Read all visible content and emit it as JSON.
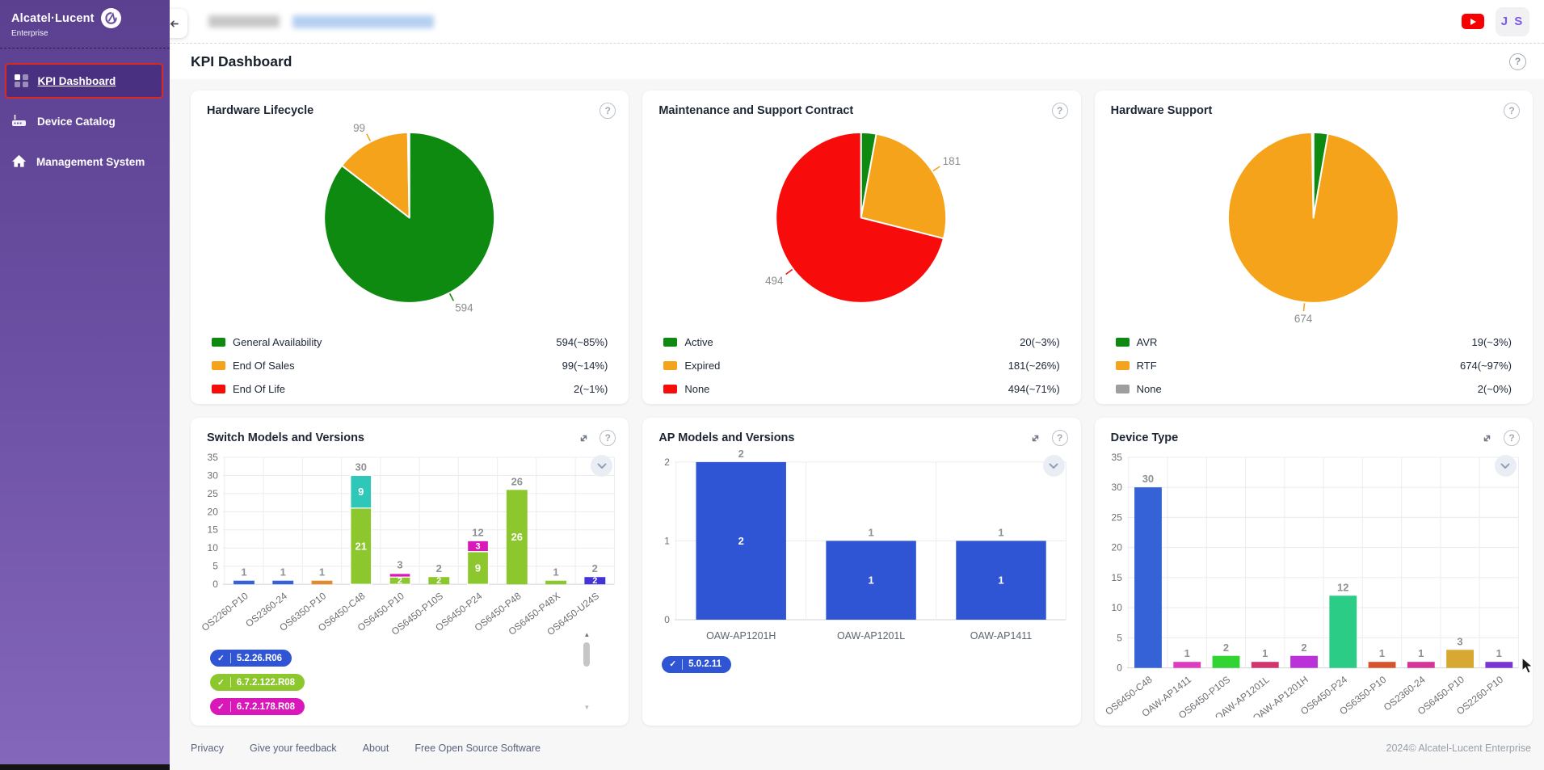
{
  "sidebar": {
    "logo": {
      "brand": "Alcatel·Lucent",
      "sub": "Enterprise"
    },
    "items": [
      {
        "label": "KPI Dashboard",
        "active": true
      },
      {
        "label": "Device Catalog",
        "active": false
      },
      {
        "label": "Management System",
        "active": false
      }
    ]
  },
  "topbar": {
    "avatar_initials": "J S"
  },
  "header": {
    "title": "KPI Dashboard"
  },
  "icons": {
    "help_glyph": "?",
    "check_glyph": "✓",
    "scroll_up_glyph": "▲",
    "scroll_down_glyph": "▼"
  },
  "footer": {
    "links": [
      "Privacy",
      "Give your feedback",
      "About",
      "Free Open Source Software"
    ],
    "copyright": "2024© Alcatel-Lucent Enterprise"
  },
  "chart_data": [
    {
      "type": "pie",
      "title": "Hardware Lifecycle",
      "slices": [
        {
          "label": "General Availability",
          "value": 594,
          "pct": "~85%",
          "legend_value": "594(~85%)",
          "color": "#0e8a10"
        },
        {
          "label": "End Of Sales",
          "value": 99,
          "pct": "~14%",
          "legend_value": "99(~14%)",
          "color": "#f5a31b"
        },
        {
          "label": "End Of Life",
          "value": 2,
          "pct": "~1%",
          "legend_value": "2(~1%)",
          "color": "#f80b0b"
        }
      ],
      "callouts": [
        {
          "text": "99",
          "angle": 333,
          "color": "#f5a31b"
        },
        {
          "text": "594",
          "angle": 152,
          "color": "#0e8a10"
        }
      ]
    },
    {
      "type": "pie",
      "title": "Maintenance and Support Contract",
      "slices": [
        {
          "label": "Active",
          "value": 20,
          "pct": "~3%",
          "legend_value": "20(~3%)",
          "color": "#0e8a10"
        },
        {
          "label": "Expired",
          "value": 181,
          "pct": "~26%",
          "legend_value": "181(~26%)",
          "color": "#f5a31b"
        },
        {
          "label": "None",
          "value": 494,
          "pct": "~71%",
          "legend_value": "494(~71%)",
          "color": "#f80b0b"
        }
      ],
      "callouts": [
        {
          "text": "181",
          "angle": 57,
          "color": "#f5a31b"
        },
        {
          "text": "494",
          "angle": 233,
          "color": "#f80b0b"
        }
      ]
    },
    {
      "type": "pie",
      "title": "Hardware Support",
      "slices": [
        {
          "label": "AVR",
          "value": 19,
          "pct": "~3%",
          "legend_value": "19(~3%)",
          "color": "#0e8a10"
        },
        {
          "label": "RTF",
          "value": 674,
          "pct": "~97%",
          "legend_value": "674(~97%)",
          "color": "#f5a31b"
        },
        {
          "label": "None",
          "value": 2,
          "pct": "~0%",
          "legend_value": "2(~0%)",
          "color": "#9e9e9e"
        }
      ],
      "callouts": [
        {
          "text": "674",
          "angle": 186,
          "color": "#f5a31b"
        }
      ]
    },
    {
      "type": "bar",
      "title": "Switch Models and Versions",
      "ymax": 35,
      "yticks": [
        0,
        5,
        10,
        15,
        20,
        25,
        30,
        35
      ],
      "categories": [
        "OS2260-P10",
        "OS2360-24",
        "OS6350-P10",
        "OS6450-C48",
        "OS6450-P10",
        "OS6450-P10S",
        "OS6450-P24",
        "OS6450-P48",
        "OS6450-P48X",
        "OS6450-U24S"
      ],
      "bars": [
        {
          "total": 1,
          "segments": [
            {
              "value": 1,
              "color": "#3562d6"
            }
          ]
        },
        {
          "total": 1,
          "segments": [
            {
              "value": 1,
              "color": "#3562d6"
            }
          ]
        },
        {
          "total": 1,
          "segments": [
            {
              "value": 1,
              "color": "#e08b2d"
            }
          ]
        },
        {
          "total": 30,
          "segments": [
            {
              "value": 21,
              "color": "#8dc72e"
            },
            {
              "value": 9,
              "color": "#2fc7b7"
            }
          ]
        },
        {
          "total": 3,
          "segments": [
            {
              "value": 2,
              "color": "#8dc72e"
            },
            {
              "value": 1,
              "color": "#d818b8"
            }
          ]
        },
        {
          "total": 2,
          "segments": [
            {
              "value": 2,
              "color": "#8dc72e"
            }
          ]
        },
        {
          "total": 12,
          "segments": [
            {
              "value": 9,
              "color": "#8dc72e"
            },
            {
              "value": 3,
              "color": "#d818b8"
            }
          ]
        },
        {
          "total": 26,
          "segments": [
            {
              "value": 26,
              "color": "#8dc72e"
            }
          ]
        },
        {
          "total": 1,
          "segments": [
            {
              "value": 1,
              "color": "#8dc72e"
            }
          ]
        },
        {
          "total": 2,
          "segments": [
            {
              "value": 2,
              "color": "#4433d6"
            }
          ]
        }
      ],
      "chips": [
        {
          "label": "5.2.26.R06",
          "color": "#2f55d4"
        },
        {
          "label": "6.7.2.122.R08",
          "color": "#8dc72e"
        },
        {
          "label": "6.7.2.178.R08",
          "color": "#d818b8"
        }
      ],
      "has_scrollbar": true
    },
    {
      "type": "bar",
      "title": "AP Models and Versions",
      "ymax": 2,
      "yticks": [
        0,
        1,
        2
      ],
      "categories": [
        "OAW-AP1201H",
        "OAW-AP1201L",
        "OAW-AP1411"
      ],
      "bars": [
        {
          "total": 2,
          "segments": [
            {
              "value": 2,
              "color": "#2f55d4"
            }
          ]
        },
        {
          "total": 1,
          "segments": [
            {
              "value": 1,
              "color": "#2f55d4"
            }
          ]
        },
        {
          "total": 1,
          "segments": [
            {
              "value": 1,
              "color": "#2f55d4"
            }
          ]
        }
      ],
      "chips": [
        {
          "label": "5.0.2.11",
          "color": "#2f55d4"
        }
      ],
      "has_scrollbar": false
    },
    {
      "type": "bar",
      "title": "Device Type",
      "ymax": 35,
      "yticks": [
        0,
        5,
        10,
        15,
        20,
        25,
        30,
        35
      ],
      "categories": [
        "OS6450-C48",
        "OAW-AP1411",
        "OS6450-P10S",
        "OAW-AP1201L",
        "OAW-AP1201H",
        "OS6450-P24",
        "OS6350-P10",
        "OS2360-24",
        "OS6450-P10",
        "OS2260-P10"
      ],
      "bars": [
        {
          "total": 30,
          "segments": [
            {
              "value": 30,
              "color": "#3562d6"
            }
          ]
        },
        {
          "total": 1,
          "segments": [
            {
              "value": 1,
              "color": "#e03bc0"
            }
          ]
        },
        {
          "total": 2,
          "segments": [
            {
              "value": 2,
              "color": "#31d433"
            }
          ]
        },
        {
          "total": 1,
          "segments": [
            {
              "value": 1,
              "color": "#d5336b"
            }
          ]
        },
        {
          "total": 2,
          "segments": [
            {
              "value": 2,
              "color": "#bb33d8"
            }
          ]
        },
        {
          "total": 12,
          "segments": [
            {
              "value": 12,
              "color": "#2bcc85"
            }
          ]
        },
        {
          "total": 1,
          "segments": [
            {
              "value": 1,
              "color": "#d8532c"
            }
          ]
        },
        {
          "total": 1,
          "segments": [
            {
              "value": 1,
              "color": "#d83399"
            }
          ]
        },
        {
          "total": 3,
          "segments": [
            {
              "value": 3,
              "color": "#d8a932"
            }
          ]
        },
        {
          "total": 1,
          "segments": [
            {
              "value": 1,
              "color": "#7c33d8"
            }
          ]
        }
      ]
    }
  ]
}
